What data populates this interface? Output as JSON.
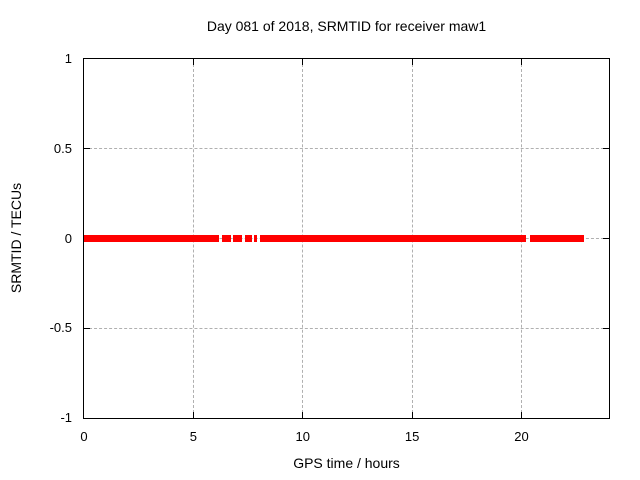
{
  "chart_data": {
    "type": "line",
    "title": "Day 081 of 2018, SRMTID for receiver maw1",
    "xlabel": "GPS time / hours",
    "ylabel": "SRMTID / TECUs",
    "xlim": [
      0,
      24
    ],
    "ylim": [
      -1,
      1
    ],
    "grid": true,
    "legend": "none",
    "x_ticks": [
      {
        "value": 0,
        "label": "0"
      },
      {
        "value": 5,
        "label": "5"
      },
      {
        "value": 10,
        "label": "10"
      },
      {
        "value": 15,
        "label": "15"
      },
      {
        "value": 20,
        "label": "20"
      }
    ],
    "y_ticks": [
      {
        "value": 1,
        "label": "1"
      },
      {
        "value": 0.5,
        "label": "0.5"
      },
      {
        "value": 0,
        "label": "0"
      },
      {
        "value": -0.5,
        "label": "-0.5"
      },
      {
        "value": -1,
        "label": "-1"
      }
    ],
    "series": [
      {
        "name": "SRMTID",
        "color": "#ff0000",
        "y_value": 0,
        "segments_x_hours": [
          [
            0.02,
            6.19
          ],
          [
            6.33,
            6.72
          ],
          [
            6.83,
            7.24
          ],
          [
            7.38,
            7.67
          ],
          [
            7.79,
            7.92
          ],
          [
            8.04,
            20.22
          ],
          [
            20.4,
            22.84
          ]
        ]
      }
    ],
    "colors": {
      "background": "#ffffff",
      "border": "#000000",
      "grid": "#b0b0b0",
      "data": "#ff0000",
      "text": "#000000"
    }
  }
}
